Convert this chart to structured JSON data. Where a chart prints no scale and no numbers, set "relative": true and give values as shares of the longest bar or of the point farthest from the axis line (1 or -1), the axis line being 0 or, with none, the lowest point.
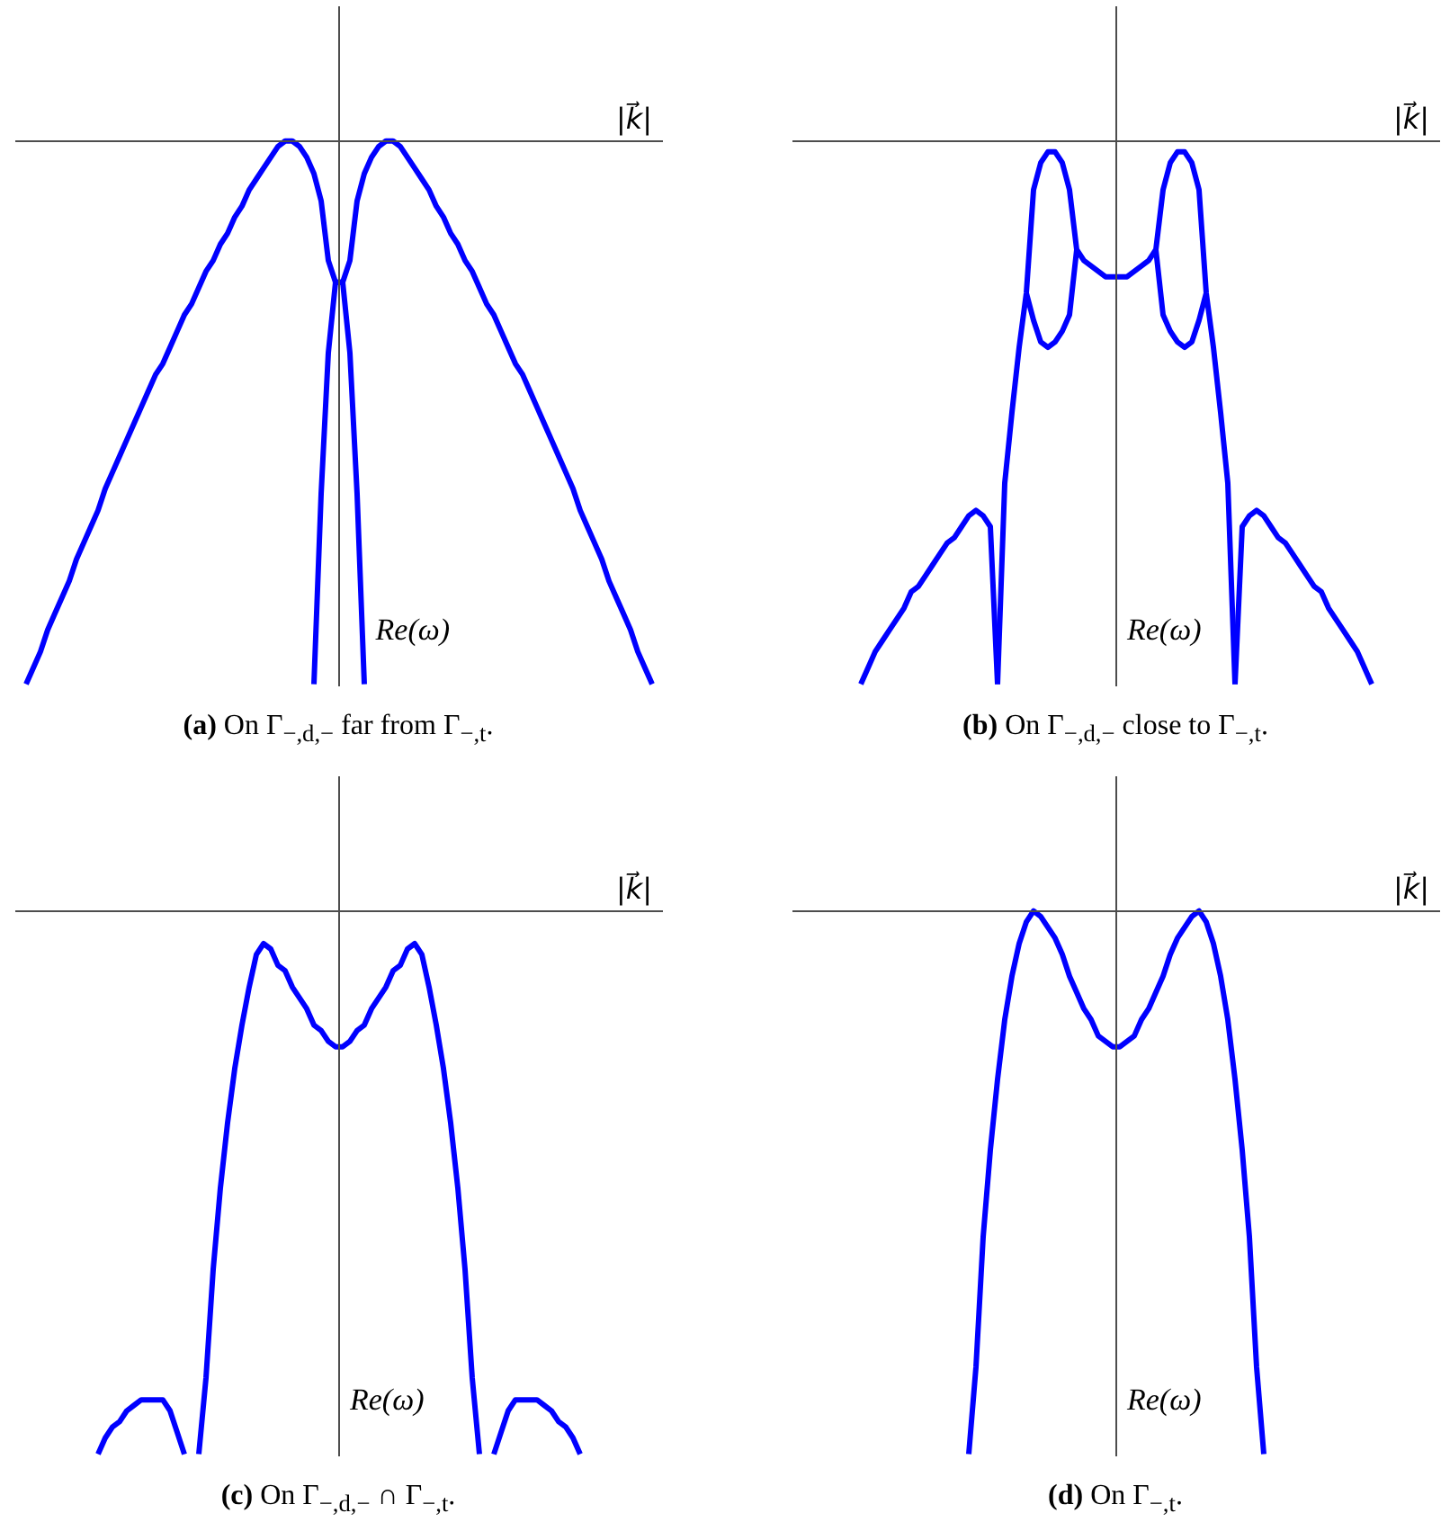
{
  "chart_data": [
    {
      "type": "line",
      "title": "(a) On Γ$_{−,d,−}$ far from Γ$_{−,t}$.",
      "xlabel": "|k⃗|",
      "ylabel": "Re(ω)",
      "relative": true,
      "categories": [
        null,
        null,
        null,
        null,
        null,
        null,
        null,
        null,
        null,
        null,
        null,
        null,
        null,
        null,
        null,
        null,
        null,
        null,
        null,
        null,
        null,
        null,
        null,
        null,
        null,
        null,
        null,
        null,
        null,
        null,
        null,
        null,
        null,
        null,
        null,
        null,
        null,
        null,
        null,
        null,
        null,
        null,
        null,
        null,
        null,
        null,
        null,
        null,
        null,
        null,
        null,
        null,
        null,
        null,
        null,
        null,
        null,
        null,
        null,
        null,
        null,
        null,
        null,
        null,
        null,
        null,
        null,
        null,
        null,
        null,
        null,
        null,
        null,
        null,
        null,
        null,
        null,
        null,
        null,
        null,
        null,
        null,
        null,
        null,
        null,
        null,
        null,
        null,
        null,
        null
      ],
      "series": [
        {
          "color": "#0000ff",
          "values": [
            null,
            -1.0,
            -0.97,
            -0.94,
            -0.9,
            -0.87,
            -0.84,
            -0.81,
            -0.77,
            -0.74,
            -0.71,
            -0.68,
            -0.64,
            -0.61,
            -0.58,
            -0.55,
            -0.52,
            -0.49,
            -0.46,
            -0.43,
            -0.41,
            -0.38,
            -0.35,
            -0.32,
            -0.3,
            -0.27,
            -0.24,
            -0.22,
            -0.19,
            -0.17,
            -0.14,
            -0.12,
            -0.09,
            -0.07,
            -0.05,
            -0.03,
            -0.01,
            0,
            0,
            -0.01,
            -0.03,
            -0.06,
            -0.11,
            -0.22,
            -0.26,
            -0.26,
            -0.22,
            -0.11,
            -0.06,
            -0.03,
            -0.01,
            0,
            0,
            -0.01,
            -0.03,
            -0.05,
            -0.07,
            -0.09,
            -0.12,
            -0.14,
            -0.17,
            -0.19,
            -0.22,
            -0.24,
            -0.27,
            -0.3,
            -0.32,
            -0.35,
            -0.38,
            -0.41,
            -0.43,
            -0.46,
            -0.49,
            -0.52,
            -0.55,
            -0.58,
            -0.61,
            -0.64,
            -0.68,
            -0.71,
            -0.74,
            -0.77,
            -0.81,
            -0.84,
            -0.87,
            -0.9,
            -0.94,
            -0.97,
            -1.0,
            null
          ]
        },
        {
          "color": "#0000ff",
          "values": [
            null,
            null,
            null,
            null,
            null,
            null,
            null,
            null,
            null,
            null,
            null,
            null,
            null,
            null,
            null,
            null,
            null,
            null,
            null,
            null,
            null,
            null,
            null,
            null,
            null,
            null,
            null,
            null,
            null,
            null,
            null,
            null,
            null,
            null,
            null,
            null,
            null,
            null,
            null,
            null,
            null,
            -1.0,
            -0.65,
            -0.39,
            -0.26,
            -0.26,
            -0.39,
            -0.65,
            -1.0,
            null,
            null,
            null,
            null,
            null,
            null,
            null,
            null,
            null,
            null,
            null,
            null,
            null,
            null,
            null,
            null,
            null,
            null,
            null,
            null,
            null,
            null,
            null,
            null,
            null,
            null,
            null,
            null,
            null,
            null,
            null,
            null,
            null,
            null,
            null,
            null,
            null,
            null,
            null,
            null,
            null
          ]
        }
      ]
    },
    {
      "type": "line",
      "title": "(b) On Γ$_{−,d,−}$ close to Γ$_{−,t}$.",
      "xlabel": "|k⃗|",
      "ylabel": "Re(ω)",
      "relative": true,
      "categories": [
        null,
        null,
        null,
        null,
        null,
        null,
        null,
        null,
        null,
        null,
        null,
        null,
        null,
        null,
        null,
        null,
        null,
        null,
        null,
        null,
        null,
        null,
        null,
        null,
        null,
        null,
        null,
        null,
        null,
        null,
        null,
        null,
        null,
        null,
        null,
        null,
        null,
        null,
        null,
        null,
        null,
        null,
        null,
        null,
        null,
        null,
        null,
        null,
        null,
        null,
        null,
        null,
        null,
        null,
        null,
        null,
        null,
        null,
        null,
        null,
        null,
        null,
        null,
        null,
        null,
        null,
        null,
        null,
        null,
        null,
        null,
        null,
        null,
        null,
        null,
        null,
        null,
        null,
        null,
        null,
        null,
        null,
        null,
        null,
        null,
        null,
        null,
        null,
        null,
        null
      ],
      "series": [
        {
          "color": "#0000ff",
          "values": [
            null,
            null,
            null,
            null,
            null,
            null,
            null,
            null,
            null,
            -1.0,
            -0.97,
            -0.94,
            -0.92,
            -0.9,
            -0.88,
            -0.86,
            -0.83,
            -0.82,
            -0.8,
            -0.78,
            -0.76,
            -0.74,
            -0.73,
            -0.71,
            -0.69,
            -0.68,
            -0.69,
            -0.71,
            -1.0,
            null,
            null,
            null,
            null,
            null,
            null,
            null,
            null,
            null,
            null,
            null,
            null,
            null,
            null,
            null,
            null,
            null,
            null,
            null,
            null,
            null,
            null,
            null,
            null,
            null,
            null,
            null,
            null,
            null,
            null,
            null,
            null,
            null,
            null,
            null,
            null,
            null,
            null,
            null,
            null,
            null,
            null,
            null,
            null,
            null,
            null,
            null,
            null,
            null,
            null,
            null,
            null,
            null,
            null,
            null,
            null,
            null,
            null,
            null,
            null,
            null
          ]
        },
        {
          "color": "#0000ff",
          "values": [
            null,
            null,
            null,
            null,
            null,
            null,
            null,
            null,
            null,
            null,
            null,
            null,
            null,
            null,
            null,
            null,
            null,
            null,
            null,
            null,
            null,
            null,
            null,
            null,
            null,
            null,
            null,
            null,
            -1.0,
            -0.63,
            -0.5,
            -0.38,
            -0.28,
            -0.09,
            -0.04,
            -0.02,
            -0.02,
            -0.04,
            -0.09,
            -0.2,
            -0.22,
            -0.23,
            -0.24,
            -0.25,
            -0.25,
            -0.25,
            -0.25,
            -0.24,
            -0.23,
            -0.22,
            -0.2,
            -0.09,
            -0.04,
            -0.02,
            -0.02,
            -0.04,
            -0.09,
            -0.28,
            -0.38,
            -0.5,
            -0.63,
            -1.0,
            null,
            null,
            null,
            null,
            null,
            null,
            null,
            null,
            null,
            null,
            null,
            null,
            null,
            null,
            null,
            null,
            null,
            null,
            null,
            null,
            null,
            null,
            null,
            null,
            null,
            null,
            null,
            null
          ]
        },
        {
          "color": "#0000ff",
          "values": [
            null,
            null,
            null,
            null,
            null,
            null,
            null,
            null,
            null,
            null,
            null,
            null,
            null,
            null,
            null,
            null,
            null,
            null,
            null,
            null,
            null,
            null,
            null,
            null,
            null,
            null,
            null,
            null,
            null,
            null,
            null,
            null,
            -0.28,
            -0.33,
            -0.37,
            -0.38,
            -0.37,
            -0.35,
            -0.32,
            -0.2,
            null,
            null,
            null,
            null,
            null,
            null,
            null,
            null,
            null,
            null,
            null,
            null,
            null,
            null,
            null,
            null,
            null,
            null,
            null,
            null,
            null,
            null,
            null,
            null,
            null,
            null,
            null,
            null,
            null,
            null,
            null,
            null,
            null,
            null,
            null,
            null,
            null,
            null,
            null,
            null,
            null,
            null,
            null,
            null,
            null,
            null,
            null,
            null,
            null,
            null
          ]
        },
        {
          "color": "#0000ff",
          "values": [
            null,
            null,
            null,
            null,
            null,
            null,
            null,
            null,
            null,
            null,
            null,
            null,
            null,
            null,
            null,
            null,
            null,
            null,
            null,
            null,
            null,
            null,
            null,
            null,
            null,
            null,
            null,
            null,
            null,
            null,
            null,
            null,
            null,
            null,
            null,
            null,
            null,
            null,
            null,
            null,
            null,
            null,
            null,
            null,
            null,
            null,
            null,
            null,
            null,
            null,
            -0.2,
            -0.32,
            -0.35,
            -0.37,
            -0.38,
            -0.37,
            -0.33,
            -0.28,
            null,
            null,
            null,
            null,
            null,
            null,
            null,
            null,
            null,
            null,
            null,
            null,
            null,
            null,
            null,
            null,
            null,
            null,
            null,
            null,
            null,
            null,
            null,
            null,
            null,
            null,
            null,
            null,
            null,
            null,
            null,
            null
          ]
        },
        {
          "color": "#0000ff",
          "values": [
            null,
            null,
            null,
            null,
            null,
            null,
            null,
            null,
            null,
            null,
            null,
            null,
            null,
            null,
            null,
            null,
            null,
            null,
            null,
            null,
            null,
            null,
            null,
            null,
            null,
            null,
            null,
            null,
            null,
            null,
            null,
            null,
            null,
            null,
            null,
            null,
            null,
            null,
            null,
            null,
            null,
            null,
            null,
            null,
            null,
            null,
            null,
            null,
            null,
            null,
            null,
            null,
            null,
            null,
            null,
            null,
            null,
            null,
            null,
            null,
            null,
            -1.0,
            -0.71,
            -0.69,
            -0.68,
            -0.69,
            -0.71,
            -0.73,
            -0.74,
            -0.76,
            -0.78,
            -0.8,
            -0.82,
            -0.83,
            -0.86,
            -0.88,
            -0.9,
            -0.92,
            -0.94,
            -0.97,
            -1.0,
            null,
            null,
            null,
            null,
            null,
            null,
            null,
            null,
            null
          ]
        }
      ]
    },
    {
      "type": "line",
      "title": "(c) On Γ$_{−,d,−}$ ∩ Γ$_{−,t}$.",
      "xlabel": "|k⃗|",
      "ylabel": "Re(ω)",
      "relative": true,
      "categories": [
        null,
        null,
        null,
        null,
        null,
        null,
        null,
        null,
        null,
        null,
        null,
        null,
        null,
        null,
        null,
        null,
        null,
        null,
        null,
        null,
        null,
        null,
        null,
        null,
        null,
        null,
        null,
        null,
        null,
        null,
        null,
        null,
        null,
        null,
        null,
        null,
        null,
        null,
        null,
        null,
        null,
        null,
        null,
        null,
        null,
        null,
        null,
        null,
        null,
        null,
        null,
        null,
        null,
        null,
        null,
        null,
        null,
        null,
        null,
        null,
        null,
        null,
        null,
        null,
        null,
        null,
        null,
        null,
        null,
        null,
        null,
        null,
        null,
        null,
        null,
        null,
        null,
        null,
        null,
        null,
        null,
        null,
        null,
        null,
        null,
        null,
        null,
        null,
        null,
        null
      ],
      "series": [
        {
          "color": "#0000ff",
          "values": [
            null,
            null,
            null,
            null,
            null,
            null,
            null,
            null,
            null,
            null,
            null,
            -1.0,
            -0.97,
            -0.95,
            -0.94,
            -0.92,
            -0.91,
            -0.9,
            -0.9,
            -0.9,
            -0.9,
            -0.92,
            -0.96,
            -1.0,
            null,
            -1.0,
            -0.86,
            -0.66,
            -0.51,
            -0.39,
            -0.29,
            -0.21,
            -0.14,
            -0.08,
            -0.06,
            -0.07,
            -0.1,
            -0.11,
            -0.14,
            -0.16,
            -0.18,
            -0.21,
            -0.22,
            -0.24,
            -0.25,
            -0.25,
            -0.24,
            -0.22,
            -0.21,
            -0.18,
            -0.16,
            -0.14,
            -0.11,
            -0.1,
            -0.07,
            -0.06,
            -0.08,
            -0.14,
            -0.21,
            -0.29,
            -0.39,
            -0.51,
            -0.66,
            -0.86,
            -1.0,
            null,
            -1.0,
            -0.96,
            -0.92,
            -0.9,
            -0.9,
            -0.9,
            -0.9,
            -0.91,
            -0.92,
            -0.94,
            -0.95,
            -0.97,
            -1.0,
            null,
            null,
            null,
            null,
            null,
            null,
            null,
            null,
            null,
            null,
            null
          ]
        }
      ]
    },
    {
      "type": "line",
      "title": "(d) On Γ$_{−,t}$.",
      "xlabel": "|k⃗|",
      "ylabel": "Re(ω)",
      "relative": true,
      "categories": [
        null,
        null,
        null,
        null,
        null,
        null,
        null,
        null,
        null,
        null,
        null,
        null,
        null,
        null,
        null,
        null,
        null,
        null,
        null,
        null,
        null,
        null,
        null,
        null,
        null,
        null,
        null,
        null,
        null,
        null,
        null,
        null,
        null,
        null,
        null,
        null,
        null,
        null,
        null,
        null,
        null,
        null,
        null,
        null,
        null,
        null,
        null,
        null,
        null,
        null,
        null,
        null,
        null,
        null,
        null,
        null,
        null,
        null,
        null,
        null,
        null,
        null,
        null,
        null,
        null,
        null,
        null,
        null,
        null,
        null,
        null,
        null,
        null,
        null,
        null,
        null,
        null,
        null,
        null,
        null,
        null,
        null,
        null,
        null,
        null,
        null,
        null,
        null,
        null,
        null
      ],
      "series": [
        {
          "color": "#0000ff",
          "values": [
            null,
            null,
            null,
            null,
            null,
            null,
            null,
            null,
            null,
            null,
            null,
            null,
            null,
            null,
            null,
            null,
            null,
            null,
            null,
            null,
            null,
            null,
            null,
            null,
            -1.0,
            -0.84,
            -0.6,
            -0.44,
            -0.31,
            -0.2,
            -0.12,
            -0.06,
            -0.02,
            0,
            -0.01,
            -0.03,
            -0.05,
            -0.08,
            -0.12,
            -0.15,
            -0.18,
            -0.2,
            -0.23,
            -0.24,
            -0.25,
            -0.25,
            -0.24,
            -0.23,
            -0.2,
            -0.18,
            -0.15,
            -0.12,
            -0.08,
            -0.05,
            -0.03,
            -0.01,
            0,
            -0.02,
            -0.06,
            -0.12,
            -0.2,
            -0.31,
            -0.44,
            -0.6,
            -0.84,
            -1.0,
            null,
            null,
            null,
            null,
            null,
            null,
            null,
            null,
            null,
            null,
            null,
            null,
            null,
            null,
            null,
            null,
            null,
            null,
            null,
            null,
            null,
            null,
            null,
            null
          ]
        }
      ]
    }
  ]
}
